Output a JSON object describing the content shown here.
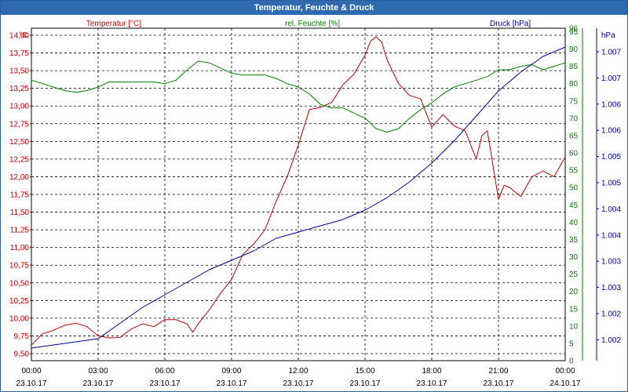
{
  "window": {
    "title": "Temperatur, Feuchte & Druck"
  },
  "colors": {
    "temperature": "#c00000",
    "humidity": "#008000",
    "pressure": "#000099",
    "axis": "#000000"
  },
  "chart_data": {
    "type": "line",
    "title": "Temperatur, Feuchte & Druck",
    "grid": true,
    "xlim": [
      "23.10.17 00:00",
      "24.10.17 00:00"
    ],
    "x_ticks": [
      {
        "time": "00:00",
        "date": "23.10.17"
      },
      {
        "time": "03:00",
        "date": "23.10.17"
      },
      {
        "time": "06:00",
        "date": "23.10.17"
      },
      {
        "time": "09:00",
        "date": "23.10.17"
      },
      {
        "time": "12:00",
        "date": "23.10.17"
      },
      {
        "time": "15:00",
        "date": "23.10.17"
      },
      {
        "time": "18:00",
        "date": "23.10.17"
      },
      {
        "time": "21:00",
        "date": "23.10.17"
      },
      {
        "time": "00:00",
        "date": "24.10.17"
      }
    ],
    "axes": {
      "temperature": {
        "label": "Temperatur [°C]",
        "unit": "°C",
        "position": "left",
        "ylim": [
          9.4,
          14.1
        ],
        "ticks": [
          "14,00",
          "13,75",
          "13,50",
          "13,25",
          "13,00",
          "12,75",
          "12,50",
          "12,25",
          "12,00",
          "11,75",
          "11,50",
          "11,25",
          "11,00",
          "10,75",
          "10,50",
          "10,25",
          "10,00",
          "9,75",
          "9,50"
        ]
      },
      "humidity": {
        "label": "rel. Feuchte [%]",
        "unit": "%",
        "position": "right",
        "ylim": [
          0,
          96
        ],
        "ticks": [
          "96",
          "95",
          "90",
          "85",
          "80",
          "75",
          "70",
          "65",
          "60",
          "55",
          "50",
          "45",
          "40",
          "35",
          "30",
          "25",
          "20",
          "15",
          "10",
          "5",
          "0"
        ]
      },
      "pressure": {
        "label": "Druck [hPa]",
        "unit": "hPa",
        "position": "right-outer",
        "ticks": [
          "1.007",
          "1.007",
          "1.006",
          "1.006",
          "1.005",
          "1.005",
          "1.004",
          "1.004",
          "1.003",
          "1.003",
          "1.002",
          "1.002"
        ]
      }
    },
    "series": [
      {
        "name": "Temperatur [°C]",
        "axis": "temperature",
        "x": [
          0,
          0.5,
          1,
          1.5,
          2,
          2.5,
          3,
          3.5,
          4,
          4.5,
          5,
          5.5,
          6,
          6.5,
          7,
          7.25,
          7.5,
          8,
          8.5,
          9,
          9.5,
          10,
          10.5,
          11,
          11.5,
          12,
          12.5,
          13,
          13.5,
          14,
          14.5,
          15,
          15.25,
          15.5,
          15.75,
          16,
          16.5,
          17,
          17.5,
          18,
          18.5,
          19,
          19.5,
          20,
          20.25,
          20.5,
          21,
          21.25,
          21.5,
          22,
          22.5,
          23,
          23.5,
          24
        ],
        "y": [
          9.62,
          9.78,
          9.83,
          9.9,
          9.93,
          9.88,
          9.75,
          9.72,
          9.73,
          9.85,
          9.92,
          9.88,
          9.98,
          9.98,
          9.92,
          9.8,
          9.92,
          10.12,
          10.35,
          10.55,
          10.9,
          11.05,
          11.25,
          11.65,
          12.0,
          12.45,
          12.95,
          12.98,
          13.05,
          13.3,
          13.45,
          13.72,
          13.92,
          13.98,
          13.9,
          13.65,
          13.32,
          13.15,
          13.1,
          12.7,
          12.88,
          12.72,
          12.65,
          12.25,
          12.58,
          12.65,
          11.68,
          11.88,
          11.85,
          11.72,
          12.0,
          12.08,
          12.0,
          12.28
        ]
      },
      {
        "name": "rel. Feuchte [%]",
        "axis": "humidity",
        "x": [
          0,
          0.5,
          1,
          1.5,
          2,
          2.5,
          3,
          3.5,
          4,
          4.5,
          5,
          5.5,
          6,
          6.5,
          7,
          7.5,
          8,
          8.5,
          9,
          9.5,
          10,
          10.5,
          11,
          11.5,
          12,
          12.5,
          13,
          13.5,
          14,
          14.5,
          15,
          15.5,
          16,
          16.5,
          17,
          17.5,
          18,
          18.5,
          19,
          19.5,
          20,
          20.5,
          21,
          21.5,
          22,
          22.5,
          23,
          23.5,
          24
        ],
        "y": [
          81,
          80,
          79,
          78,
          77.5,
          78,
          79,
          80.5,
          80.5,
          80.5,
          80.5,
          80.5,
          80,
          81,
          84,
          86.5,
          86,
          84.5,
          83,
          82.5,
          82.5,
          82.5,
          81.5,
          80,
          79,
          77,
          74,
          73,
          73,
          71.5,
          70,
          67,
          66,
          67,
          70,
          72.5,
          74.5,
          77,
          79,
          80,
          81,
          82,
          84,
          84,
          85,
          85.5,
          84,
          85,
          86
        ]
      },
      {
        "name": "Druck [hPa]",
        "axis": "pressure",
        "x": [
          0,
          1,
          2,
          3,
          4,
          5,
          6,
          7,
          8,
          9,
          10,
          11,
          12,
          13,
          14,
          15,
          16,
          17,
          18,
          19,
          20,
          21,
          22,
          23,
          24
        ],
        "y": [
          1001.9,
          1001.95,
          1002.0,
          1002.05,
          1002.3,
          1002.55,
          1002.75,
          1002.95,
          1003.15,
          1003.3,
          1003.45,
          1003.65,
          1003.75,
          1003.85,
          1003.95,
          1004.1,
          1004.3,
          1004.55,
          1004.85,
          1005.2,
          1005.6,
          1006.0,
          1006.3,
          1006.55,
          1006.7
        ]
      }
    ]
  }
}
